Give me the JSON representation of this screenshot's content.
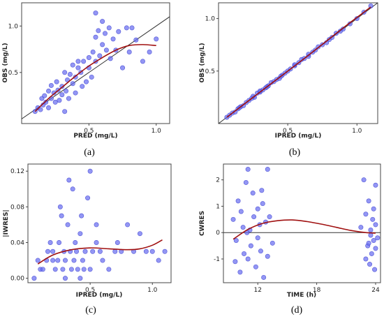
{
  "chart_data": [
    {
      "type": "scatter",
      "panel_label": "(a)",
      "xlabel": "PRED (mg/L)",
      "ylabel": "OBS (mg/L)",
      "xlim": [
        0.0,
        1.1
      ],
      "ylim": [
        -0.05,
        1.25
      ],
      "xticks": [
        0.5,
        1.0
      ],
      "xtick_labels": [
        "0.5",
        "1.0"
      ],
      "yticks": [
        0.5,
        1.0
      ],
      "ytick_labels": [
        "0.5",
        "1.0"
      ],
      "reference_line": "identity",
      "points": [
        [
          0.1,
          0.08
        ],
        [
          0.12,
          0.12
        ],
        [
          0.14,
          0.1
        ],
        [
          0.15,
          0.22
        ],
        [
          0.16,
          0.15
        ],
        [
          0.17,
          0.25
        ],
        [
          0.18,
          0.18
        ],
        [
          0.2,
          0.12
        ],
        [
          0.2,
          0.3
        ],
        [
          0.22,
          0.22
        ],
        [
          0.22,
          0.36
        ],
        [
          0.24,
          0.28
        ],
        [
          0.25,
          0.18
        ],
        [
          0.26,
          0.4
        ],
        [
          0.27,
          0.31
        ],
        [
          0.28,
          0.2
        ],
        [
          0.3,
          0.35
        ],
        [
          0.3,
          0.26
        ],
        [
          0.32,
          0.5
        ],
        [
          0.33,
          0.3
        ],
        [
          0.34,
          0.42
        ],
        [
          0.35,
          0.22
        ],
        [
          0.36,
          0.48
        ],
        [
          0.38,
          0.58
        ],
        [
          0.38,
          0.38
        ],
        [
          0.4,
          0.45
        ],
        [
          0.4,
          0.28
        ],
        [
          0.42,
          0.55
        ],
        [
          0.44,
          0.5
        ],
        [
          0.45,
          0.35
        ],
        [
          0.46,
          0.62
        ],
        [
          0.48,
          0.4
        ],
        [
          0.5,
          0.55
        ],
        [
          0.5,
          0.66
        ],
        [
          0.52,
          0.45
        ],
        [
          0.53,
          0.72
        ],
        [
          0.55,
          0.62
        ],
        [
          0.55,
          0.88
        ],
        [
          0.57,
          0.95
        ],
        [
          0.58,
          0.68
        ],
        [
          0.6,
          1.05
        ],
        [
          0.6,
          0.8
        ],
        [
          0.62,
          0.92
        ],
        [
          0.63,
          0.74
        ],
        [
          0.65,
          0.98
        ],
        [
          0.66,
          0.65
        ],
        [
          0.68,
          0.86
        ],
        [
          0.7,
          0.74
        ],
        [
          0.72,
          0.94
        ],
        [
          0.75,
          0.55
        ],
        [
          0.78,
          0.98
        ],
        [
          0.8,
          0.72
        ],
        [
          0.82,
          0.98
        ],
        [
          0.85,
          0.85
        ],
        [
          0.9,
          0.62
        ],
        [
          0.95,
          0.72
        ],
        [
          1.0,
          0.86
        ],
        [
          0.55,
          1.14
        ],
        [
          0.32,
          0.08
        ],
        [
          0.42,
          0.62
        ]
      ],
      "trend": [
        [
          0.1,
          0.08
        ],
        [
          0.2,
          0.22
        ],
        [
          0.3,
          0.34
        ],
        [
          0.4,
          0.46
        ],
        [
          0.5,
          0.57
        ],
        [
          0.6,
          0.66
        ],
        [
          0.7,
          0.74
        ],
        [
          0.8,
          0.79
        ],
        [
          0.9,
          0.8
        ],
        [
          1.0,
          0.79
        ]
      ]
    },
    {
      "type": "scatter",
      "panel_label": "(b)",
      "xlabel": "IPRED (mg/L)",
      "ylabel": "OBS (mg/L)",
      "xlim": [
        0.0,
        1.15
      ],
      "ylim": [
        0.0,
        1.15
      ],
      "xticks": [
        0.5,
        1.0
      ],
      "xtick_labels": [
        "0.5",
        "1.0"
      ],
      "yticks": [
        0.5,
        1.0
      ],
      "ytick_labels": [
        "0.5",
        "1.0"
      ],
      "reference_line": "identity",
      "points": [
        [
          0.06,
          0.06
        ],
        [
          0.08,
          0.08
        ],
        [
          0.1,
          0.1
        ],
        [
          0.12,
          0.11
        ],
        [
          0.14,
          0.14
        ],
        [
          0.16,
          0.16
        ],
        [
          0.18,
          0.17
        ],
        [
          0.2,
          0.2
        ],
        [
          0.22,
          0.22
        ],
        [
          0.24,
          0.24
        ],
        [
          0.26,
          0.25
        ],
        [
          0.28,
          0.29
        ],
        [
          0.3,
          0.3
        ],
        [
          0.32,
          0.32
        ],
        [
          0.34,
          0.34
        ],
        [
          0.36,
          0.36
        ],
        [
          0.38,
          0.39
        ],
        [
          0.4,
          0.4
        ],
        [
          0.42,
          0.42
        ],
        [
          0.44,
          0.43
        ],
        [
          0.46,
          0.46
        ],
        [
          0.48,
          0.48
        ],
        [
          0.5,
          0.5
        ],
        [
          0.52,
          0.52
        ],
        [
          0.55,
          0.55
        ],
        [
          0.58,
          0.58
        ],
        [
          0.6,
          0.61
        ],
        [
          0.62,
          0.62
        ],
        [
          0.65,
          0.64
        ],
        [
          0.68,
          0.68
        ],
        [
          0.7,
          0.7
        ],
        [
          0.72,
          0.73
        ],
        [
          0.75,
          0.75
        ],
        [
          0.78,
          0.77
        ],
        [
          0.8,
          0.8
        ],
        [
          0.82,
          0.82
        ],
        [
          0.85,
          0.86
        ],
        [
          0.88,
          0.88
        ],
        [
          0.9,
          0.9
        ],
        [
          0.95,
          0.95
        ],
        [
          1.0,
          1.0
        ],
        [
          1.05,
          1.06
        ],
        [
          1.1,
          1.12
        ],
        [
          0.25,
          0.26
        ],
        [
          0.35,
          0.35
        ],
        [
          0.45,
          0.45
        ],
        [
          0.55,
          0.56
        ],
        [
          0.65,
          0.66
        ],
        [
          0.15,
          0.15
        ],
        [
          0.3,
          0.31
        ]
      ],
      "trend": [
        [
          0.06,
          0.06
        ],
        [
          0.3,
          0.3
        ],
        [
          0.6,
          0.6
        ],
        [
          0.9,
          0.91
        ],
        [
          1.1,
          1.11
        ]
      ]
    },
    {
      "type": "scatter",
      "panel_label": "(c)",
      "xlabel": "IPRED (mg/L)",
      "ylabel": "|IWRES|",
      "xlim": [
        0.0,
        1.15
      ],
      "ylim": [
        -0.005,
        0.128
      ],
      "xticks": [
        0.5,
        1.0
      ],
      "xtick_labels": [
        "0.5",
        "1.0"
      ],
      "yticks": [
        0.0,
        0.04,
        0.08,
        0.12
      ],
      "ytick_labels": [
        "0.00",
        "0.04",
        "0.08",
        "0.12"
      ],
      "points": [
        [
          0.08,
          0.02
        ],
        [
          0.1,
          0.01
        ],
        [
          0.12,
          0.01
        ],
        [
          0.15,
          0.02
        ],
        [
          0.16,
          0.03
        ],
        [
          0.18,
          0.04
        ],
        [
          0.2,
          0.02
        ],
        [
          0.2,
          0.03
        ],
        [
          0.22,
          0.01
        ],
        [
          0.24,
          0.02
        ],
        [
          0.25,
          0.04
        ],
        [
          0.26,
          0.08
        ],
        [
          0.27,
          0.07
        ],
        [
          0.28,
          0.01
        ],
        [
          0.29,
          0.03
        ],
        [
          0.3,
          0.02
        ],
        [
          0.32,
          0.06
        ],
        [
          0.33,
          0.11
        ],
        [
          0.34,
          0.03
        ],
        [
          0.35,
          0.01
        ],
        [
          0.36,
          0.1
        ],
        [
          0.37,
          0.02
        ],
        [
          0.38,
          0.04
        ],
        [
          0.39,
          0.03
        ],
        [
          0.4,
          0.01
        ],
        [
          0.42,
          0.05
        ],
        [
          0.43,
          0.07
        ],
        [
          0.44,
          0.02
        ],
        [
          0.45,
          0.01
        ],
        [
          0.46,
          0.03
        ],
        [
          0.48,
          0.09
        ],
        [
          0.5,
          0.12
        ],
        [
          0.5,
          0.01
        ],
        [
          0.52,
          0.03
        ],
        [
          0.55,
          0.06
        ],
        [
          0.58,
          0.03
        ],
        [
          0.6,
          0.02
        ],
        [
          0.65,
          0.01
        ],
        [
          0.7,
          0.03
        ],
        [
          0.72,
          0.04
        ],
        [
          0.75,
          0.03
        ],
        [
          0.8,
          0.06
        ],
        [
          0.85,
          0.03
        ],
        [
          0.9,
          0.05
        ],
        [
          0.95,
          0.03
        ],
        [
          1.0,
          0.03
        ],
        [
          1.05,
          0.02
        ],
        [
          1.1,
          0.03
        ],
        [
          0.42,
          0.0
        ],
        [
          0.3,
          0.0
        ],
        [
          0.05,
          0.0
        ],
        [
          0.55,
          0.04
        ]
      ],
      "trend": [
        [
          0.08,
          0.016
        ],
        [
          0.2,
          0.026
        ],
        [
          0.35,
          0.032
        ],
        [
          0.5,
          0.034
        ],
        [
          0.65,
          0.033
        ],
        [
          0.8,
          0.032
        ],
        [
          0.9,
          0.033
        ],
        [
          1.0,
          0.037
        ],
        [
          1.08,
          0.043
        ]
      ]
    },
    {
      "type": "scatter",
      "panel_label": "(d)",
      "xlabel": "TIME (h)",
      "ylabel": "CWRES",
      "xlim": [
        8.5,
        24.5
      ],
      "ylim": [
        -1.9,
        2.6
      ],
      "xticks": [
        12,
        18,
        24
      ],
      "xtick_labels": [
        "12",
        "18",
        "24"
      ],
      "yticks": [
        -1,
        0,
        1,
        2
      ],
      "ytick_labels": [
        "-1",
        "0",
        "1",
        "2"
      ],
      "reference_line": "y=0",
      "points": [
        [
          9.5,
          0.5
        ],
        [
          9.8,
          -0.3
        ],
        [
          10.0,
          1.2
        ],
        [
          10.2,
          -1.5
        ],
        [
          10.3,
          0.8
        ],
        [
          10.5,
          0.2
        ],
        [
          10.6,
          -0.8
        ],
        [
          10.8,
          1.9
        ],
        [
          11.0,
          2.4
        ],
        [
          11.0,
          -1.0
        ],
        [
          11.2,
          0.1
        ],
        [
          11.3,
          -0.5
        ],
        [
          11.5,
          1.5
        ],
        [
          11.6,
          0.6
        ],
        [
          11.8,
          -1.3
        ],
        [
          12.0,
          0.9
        ],
        [
          12.0,
          -0.2
        ],
        [
          12.2,
          0.3
        ],
        [
          12.3,
          -0.7
        ],
        [
          12.5,
          1.1
        ],
        [
          12.6,
          -1.7
        ],
        [
          12.8,
          0.4
        ],
        [
          13.0,
          2.4
        ],
        [
          13.0,
          -0.9
        ],
        [
          13.2,
          0.6
        ],
        [
          13.5,
          -0.4
        ],
        [
          9.7,
          -1.1
        ],
        [
          10.9,
          0.0
        ],
        [
          12.4,
          1.6
        ],
        [
          22.8,
          2.0
        ],
        [
          23.0,
          0.7
        ],
        [
          23.2,
          -0.5
        ],
        [
          23.3,
          1.2
        ],
        [
          23.4,
          -1.2
        ],
        [
          23.5,
          0.1
        ],
        [
          23.6,
          -0.8
        ],
        [
          23.7,
          0.5
        ],
        [
          23.8,
          -0.3
        ],
        [
          23.9,
          -1.4
        ],
        [
          24.0,
          0.3
        ],
        [
          24.0,
          1.8
        ],
        [
          24.0,
          -0.6
        ],
        [
          23.8,
          0.9
        ],
        [
          23.5,
          -0.1
        ],
        [
          23.0,
          -1.0
        ],
        [
          22.5,
          0.2
        ],
        [
          24.2,
          -0.2
        ],
        [
          23.3,
          -0.4
        ]
      ],
      "trend": [
        [
          9.5,
          -0.25
        ],
        [
          11,
          0.12
        ],
        [
          12.5,
          0.35
        ],
        [
          14,
          0.45
        ],
        [
          15.5,
          0.48
        ],
        [
          17,
          0.42
        ],
        [
          18.5,
          0.32
        ],
        [
          20,
          0.2
        ],
        [
          21.5,
          0.08
        ],
        [
          23,
          0.0
        ],
        [
          24,
          -0.02
        ]
      ]
    }
  ],
  "colors": {
    "point_fill": "#6a6ef0",
    "point_stroke": "#3a3ed0",
    "trend_line": "#a01010",
    "reference_line": "#333333",
    "frame": "#444444"
  }
}
